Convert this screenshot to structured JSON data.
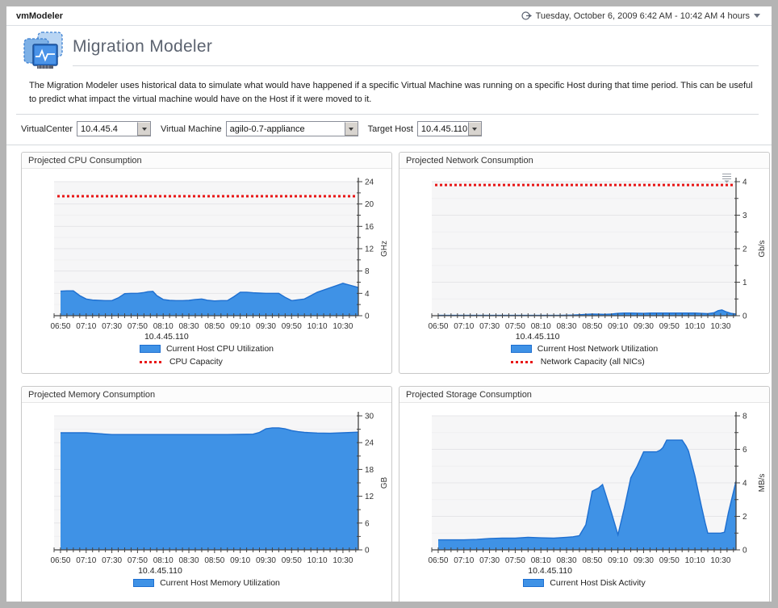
{
  "window": {
    "app_title": "vmModeler",
    "time_range": "Tuesday, October 6, 2009 6:42 AM - 10:42 AM 4 hours"
  },
  "page": {
    "title": "Migration Modeler",
    "description": "The Migration Modeler uses historical data to simulate what would have happened if a specific Virtual Machine was running on a specific Host during that time period. This can be useful to predict what impact the virtual machine would have on the Host if it were moved to it."
  },
  "controls": {
    "virtualcenter_label": "VirtualCenter",
    "virtualcenter_value": "10.4.45.4",
    "virtual_machine_label": "Virtual Machine",
    "virtual_machine_value": "agilo-0.7-appliance",
    "target_host_label": "Target Host",
    "target_host_value": "10.4.45.110"
  },
  "icons": {
    "time_range": "clock-arrow-icon",
    "dropdown": "chevron-down-icon",
    "chart_menu": "chart-menu-icon",
    "page": "migration-modeler-icon"
  },
  "colors": {
    "frame": "#b4b4b4",
    "area_fill": "#3f92e6",
    "area_stroke": "#1e6fd0",
    "capacity": "#e81515",
    "plot_bg": "#f6f6f7",
    "grid_major": "#e5e5e8",
    "grid_minor": "#efeff1",
    "axis": "#444444",
    "tick_text": "#333333"
  },
  "chart_data": [
    {
      "id": "cpu",
      "type": "area",
      "panel_title": "Projected CPU Consumption",
      "unit": "GHz",
      "ylim": [
        0,
        24
      ],
      "ytick_step": 4,
      "yminor_step": 2,
      "capacity": 21.4,
      "host": "10.4.45.110",
      "legend": [
        {
          "swatch": "area",
          "label": "Current Host CPU Utilization"
        },
        {
          "swatch": "capacity",
          "label": "CPU Capacity"
        }
      ],
      "x_domain_minutes": [
        405,
        642
      ],
      "xticks": [
        [
          410,
          "06:50"
        ],
        [
          430,
          "07:10"
        ],
        [
          450,
          "07:30"
        ],
        [
          470,
          "07:50"
        ],
        [
          490,
          "08:10"
        ],
        [
          510,
          "08:30"
        ],
        [
          530,
          "08:50"
        ],
        [
          550,
          "09:10"
        ],
        [
          570,
          "09:30"
        ],
        [
          590,
          "09:50"
        ],
        [
          610,
          "10:10"
        ],
        [
          630,
          "10:30"
        ]
      ],
      "points": [
        [
          410,
          4.4
        ],
        [
          415,
          4.45
        ],
        [
          420,
          4.45
        ],
        [
          425,
          3.6
        ],
        [
          430,
          3.0
        ],
        [
          435,
          2.8
        ],
        [
          440,
          2.75
        ],
        [
          445,
          2.7
        ],
        [
          450,
          2.7
        ],
        [
          455,
          3.2
        ],
        [
          460,
          3.95
        ],
        [
          465,
          4.0
        ],
        [
          470,
          4.0
        ],
        [
          475,
          4.15
        ],
        [
          478,
          4.3
        ],
        [
          482,
          4.35
        ],
        [
          485,
          3.6
        ],
        [
          490,
          2.9
        ],
        [
          495,
          2.75
        ],
        [
          500,
          2.7
        ],
        [
          505,
          2.7
        ],
        [
          510,
          2.75
        ],
        [
          515,
          2.9
        ],
        [
          520,
          3.0
        ],
        [
          525,
          2.75
        ],
        [
          530,
          2.65
        ],
        [
          535,
          2.7
        ],
        [
          540,
          2.7
        ],
        [
          545,
          3.4
        ],
        [
          550,
          4.2
        ],
        [
          555,
          4.2
        ],
        [
          560,
          4.1
        ],
        [
          565,
          4.05
        ],
        [
          570,
          4.0
        ],
        [
          575,
          4.0
        ],
        [
          580,
          4.0
        ],
        [
          585,
          3.3
        ],
        [
          590,
          2.7
        ],
        [
          595,
          2.85
        ],
        [
          600,
          3.0
        ],
        [
          605,
          3.6
        ],
        [
          610,
          4.2
        ],
        [
          615,
          4.6
        ],
        [
          620,
          5.0
        ],
        [
          625,
          5.4
        ],
        [
          630,
          5.8
        ],
        [
          635,
          5.5
        ],
        [
          642,
          5.05
        ]
      ]
    },
    {
      "id": "network",
      "type": "area",
      "panel_title": "Projected Network Consumption",
      "unit": "Gb/s",
      "ylim": [
        0,
        4
      ],
      "ytick_step": 1,
      "yminor_step": 0.5,
      "capacity": 3.9,
      "host": "10.4.45.110",
      "legend": [
        {
          "swatch": "area",
          "label": "Current Host Network Utilization"
        },
        {
          "swatch": "capacity",
          "label": "Network Capacity (all NICs)"
        }
      ],
      "x_domain_minutes": [
        405,
        642
      ],
      "xticks": [
        [
          410,
          "06:50"
        ],
        [
          430,
          "07:10"
        ],
        [
          450,
          "07:30"
        ],
        [
          470,
          "07:50"
        ],
        [
          490,
          "08:10"
        ],
        [
          510,
          "08:30"
        ],
        [
          530,
          "08:50"
        ],
        [
          550,
          "09:10"
        ],
        [
          570,
          "09:30"
        ],
        [
          590,
          "09:50"
        ],
        [
          610,
          "10:10"
        ],
        [
          630,
          "10:30"
        ]
      ],
      "points": [
        [
          410,
          0.01
        ],
        [
          470,
          0.01
        ],
        [
          505,
          0.01
        ],
        [
          515,
          0.02
        ],
        [
          520,
          0.03
        ],
        [
          525,
          0.04
        ],
        [
          530,
          0.05
        ],
        [
          540,
          0.04
        ],
        [
          545,
          0.05
        ],
        [
          550,
          0.07
        ],
        [
          555,
          0.08
        ],
        [
          560,
          0.08
        ],
        [
          570,
          0.07
        ],
        [
          575,
          0.08
        ],
        [
          585,
          0.08
        ],
        [
          595,
          0.08
        ],
        [
          605,
          0.08
        ],
        [
          610,
          0.08
        ],
        [
          615,
          0.07
        ],
        [
          620,
          0.06
        ],
        [
          625,
          0.09
        ],
        [
          628,
          0.15
        ],
        [
          631,
          0.17
        ],
        [
          634,
          0.12
        ],
        [
          638,
          0.07
        ],
        [
          642,
          0.05
        ]
      ]
    },
    {
      "id": "memory",
      "type": "area",
      "panel_title": "Projected Memory Consumption",
      "unit": "GB",
      "ylim": [
        0,
        30
      ],
      "ytick_step": 6,
      "yminor_step": 3,
      "capacity": null,
      "host": "10.4.45.110",
      "legend": [
        {
          "swatch": "area",
          "label": "Current Host Memory Utilization"
        }
      ],
      "x_domain_minutes": [
        405,
        642
      ],
      "xticks": [
        [
          410,
          "06:50"
        ],
        [
          430,
          "07:10"
        ],
        [
          450,
          "07:30"
        ],
        [
          470,
          "07:50"
        ],
        [
          490,
          "08:10"
        ],
        [
          510,
          "08:30"
        ],
        [
          530,
          "08:50"
        ],
        [
          550,
          "09:10"
        ],
        [
          570,
          "09:30"
        ],
        [
          590,
          "09:50"
        ],
        [
          610,
          "10:10"
        ],
        [
          630,
          "10:30"
        ]
      ],
      "points": [
        [
          410,
          26.2
        ],
        [
          420,
          26.2
        ],
        [
          430,
          26.2
        ],
        [
          440,
          26.0
        ],
        [
          450,
          25.8
        ],
        [
          465,
          25.8
        ],
        [
          480,
          25.8
        ],
        [
          495,
          25.8
        ],
        [
          510,
          25.8
        ],
        [
          525,
          25.8
        ],
        [
          540,
          25.8
        ],
        [
          550,
          25.85
        ],
        [
          560,
          25.9
        ],
        [
          565,
          26.3
        ],
        [
          570,
          27.1
        ],
        [
          575,
          27.3
        ],
        [
          580,
          27.3
        ],
        [
          585,
          27.1
        ],
        [
          590,
          26.7
        ],
        [
          595,
          26.45
        ],
        [
          600,
          26.3
        ],
        [
          610,
          26.15
        ],
        [
          620,
          26.1
        ],
        [
          630,
          26.2
        ],
        [
          642,
          26.35
        ]
      ]
    },
    {
      "id": "storage",
      "type": "area",
      "panel_title": "Projected Storage Consumption",
      "unit": "MB/s",
      "ylim": [
        0,
        8
      ],
      "ytick_step": 2,
      "yminor_step": 1,
      "capacity": null,
      "host": "10.4.45.110",
      "legend": [
        {
          "swatch": "area",
          "label": "Current Host Disk Activity"
        }
      ],
      "x_domain_minutes": [
        405,
        642
      ],
      "xticks": [
        [
          410,
          "06:50"
        ],
        [
          430,
          "07:10"
        ],
        [
          450,
          "07:30"
        ],
        [
          470,
          "07:50"
        ],
        [
          490,
          "08:10"
        ],
        [
          510,
          "08:30"
        ],
        [
          530,
          "08:50"
        ],
        [
          550,
          "09:10"
        ],
        [
          570,
          "09:30"
        ],
        [
          590,
          "09:50"
        ],
        [
          610,
          "10:10"
        ],
        [
          630,
          "10:30"
        ]
      ],
      "points": [
        [
          410,
          0.6
        ],
        [
          420,
          0.6
        ],
        [
          430,
          0.6
        ],
        [
          440,
          0.62
        ],
        [
          450,
          0.68
        ],
        [
          460,
          0.7
        ],
        [
          470,
          0.7
        ],
        [
          480,
          0.75
        ],
        [
          490,
          0.72
        ],
        [
          500,
          0.7
        ],
        [
          510,
          0.75
        ],
        [
          515,
          0.78
        ],
        [
          520,
          0.85
        ],
        [
          525,
          1.5
        ],
        [
          530,
          3.5
        ],
        [
          535,
          3.7
        ],
        [
          538,
          3.9
        ],
        [
          545,
          2.2
        ],
        [
          550,
          0.9
        ],
        [
          555,
          2.5
        ],
        [
          560,
          4.3
        ],
        [
          565,
          5.0
        ],
        [
          570,
          5.85
        ],
        [
          575,
          5.85
        ],
        [
          580,
          5.85
        ],
        [
          583,
          5.95
        ],
        [
          585,
          6.1
        ],
        [
          588,
          6.55
        ],
        [
          595,
          6.55
        ],
        [
          600,
          6.55
        ],
        [
          603,
          6.2
        ],
        [
          605,
          5.9
        ],
        [
          610,
          4.4
        ],
        [
          615,
          2.6
        ],
        [
          618,
          1.6
        ],
        [
          620,
          1.0
        ],
        [
          625,
          1.0
        ],
        [
          630,
          1.0
        ],
        [
          633,
          1.05
        ],
        [
          636,
          2.2
        ],
        [
          642,
          4.1
        ]
      ]
    }
  ]
}
